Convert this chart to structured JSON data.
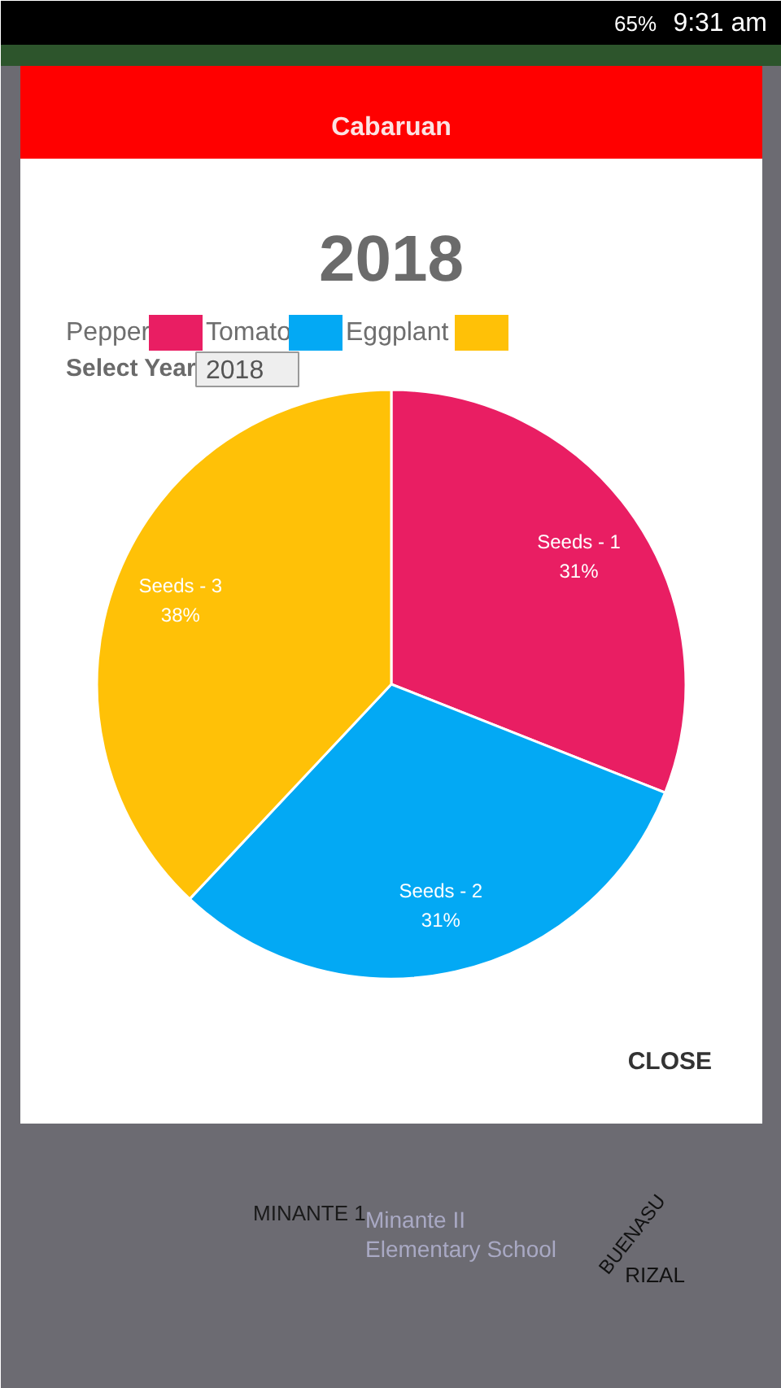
{
  "chart_data": {
    "type": "pie",
    "title": "Cabaruan",
    "subtitle": "2018",
    "categories": [
      "Pepper",
      "Tomato",
      "Eggplant"
    ],
    "values": [
      31,
      31,
      38
    ],
    "colors": [
      "#e91e63",
      "#03a9f4",
      "#ffc107"
    ],
    "value_labels": [
      "Seeds - 1\n31%",
      "Seeds - 2\n31%",
      "Seeds - 3\n38%"
    ],
    "legend": "top left",
    "annotations": [
      "Select Year",
      "2018",
      "CLOSE",
      "65%",
      "9:31 am",
      "MINANTE 1",
      "Minante II\nElementary School",
      "BUENASU",
      "RIZAL"
    ]
  }
}
